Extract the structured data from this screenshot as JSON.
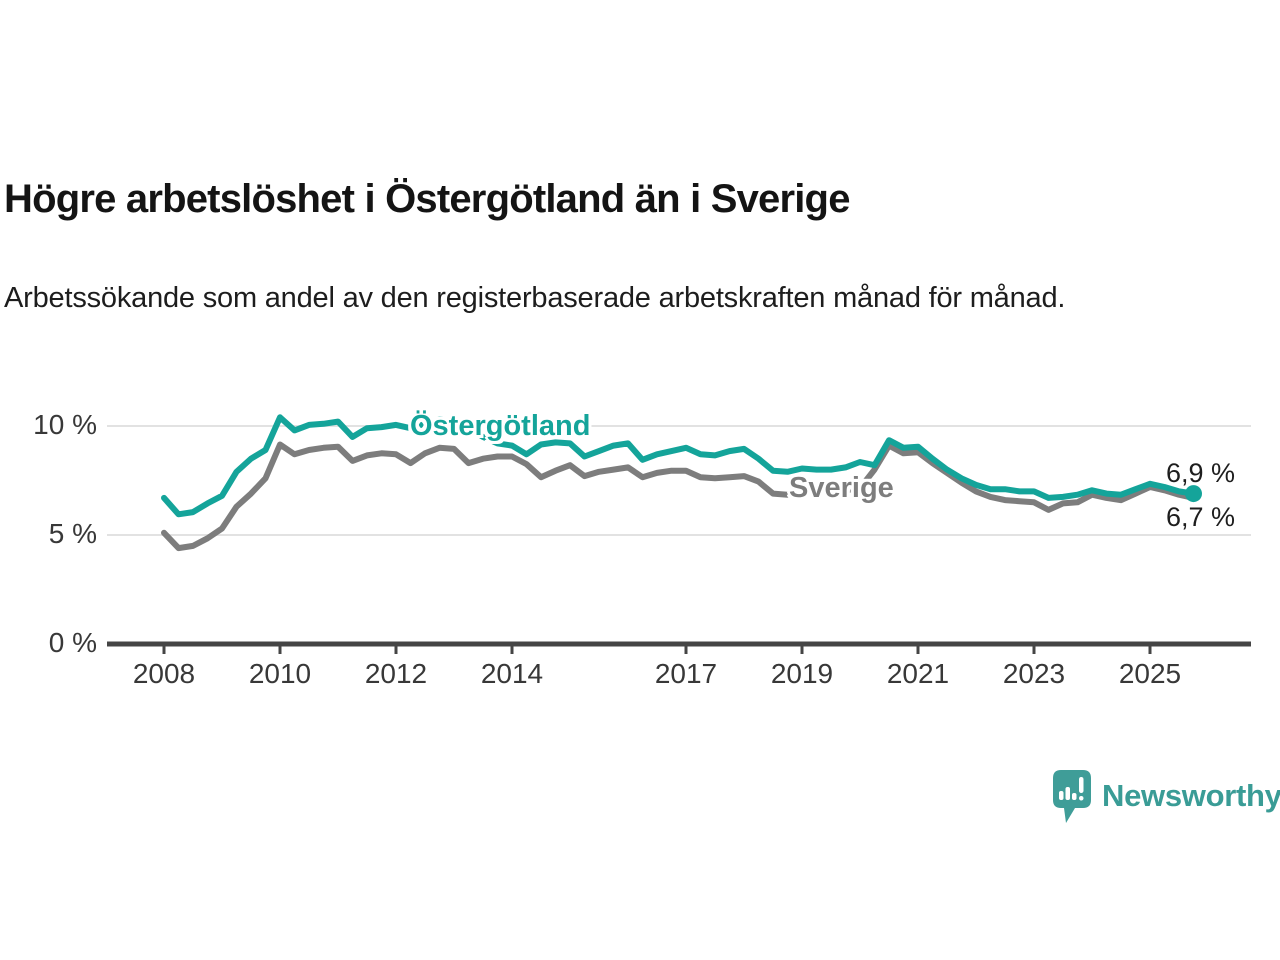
{
  "header": {
    "title": "Högre arbetslöshet i Östergötland än i Sverige",
    "subtitle": "Arbetssökande som andel av den registerbaserade arbetskraften månad för månad."
  },
  "chart_data": {
    "type": "line",
    "title": "Högre arbetslöshet i Östergötland än i Sverige",
    "xlabel": "",
    "ylabel": "",
    "unit": "%",
    "grid": "horizontal-only",
    "x_axis": {
      "start": 2008,
      "step": 0.25,
      "end": 2025.75,
      "ticks": [
        2008,
        2010,
        2012,
        2014,
        2017,
        2019,
        2021,
        2023,
        2025
      ]
    },
    "y_axis": {
      "min": 0,
      "max": 11.6,
      "ticks": [
        {
          "value": 10,
          "label": "10 %"
        },
        {
          "value": 5,
          "label": "5 %"
        },
        {
          "value": 0,
          "label": "0 %"
        }
      ]
    },
    "series": [
      {
        "name": "Sverige",
        "color": "#7d7d7d",
        "end_label": "6,7 %",
        "end_dot": false,
        "values": [
          5.1,
          4.4,
          4.5,
          4.85,
          5.3,
          6.3,
          6.9,
          7.6,
          9.15,
          8.7,
          8.9,
          9.0,
          9.05,
          8.4,
          8.65,
          8.75,
          8.7,
          8.3,
          8.75,
          9.0,
          8.95,
          8.3,
          8.5,
          8.6,
          8.6,
          8.25,
          7.65,
          7.95,
          8.2,
          7.7,
          7.9,
          8.0,
          8.1,
          7.65,
          7.85,
          7.95,
          7.95,
          7.65,
          7.6,
          7.65,
          7.7,
          7.45,
          6.9,
          6.85,
          6.9,
          6.95,
          7.0,
          7.05,
          7.15,
          8.0,
          9.1,
          8.75,
          8.8,
          8.3,
          7.85,
          7.4,
          7.0,
          6.75,
          6.6,
          6.55,
          6.5,
          6.15,
          6.45,
          6.5,
          6.85,
          6.7,
          6.6,
          6.9,
          7.2,
          7.05,
          6.85,
          6.7
        ]
      },
      {
        "name": "Östergötland",
        "color": "#14a49a",
        "end_label": "6,9 %",
        "end_dot": true,
        "values": [
          6.7,
          5.95,
          6.05,
          6.45,
          6.8,
          7.9,
          8.5,
          8.9,
          10.4,
          9.8,
          10.05,
          10.1,
          10.2,
          9.5,
          9.9,
          9.95,
          10.05,
          9.9,
          10.1,
          10.3,
          10.2,
          9.9,
          9.5,
          9.2,
          9.1,
          8.7,
          9.15,
          9.25,
          9.2,
          8.6,
          8.85,
          9.1,
          9.2,
          8.45,
          8.7,
          8.85,
          9.0,
          8.7,
          8.65,
          8.85,
          8.95,
          8.5,
          7.95,
          7.9,
          8.05,
          8.0,
          8.0,
          8.1,
          8.35,
          8.2,
          9.35,
          9.0,
          9.05,
          8.5,
          8.0,
          7.6,
          7.3,
          7.1,
          7.1,
          7.0,
          7.0,
          6.7,
          6.75,
          6.85,
          7.05,
          6.9,
          6.85,
          7.1,
          7.35,
          7.2,
          7.0,
          6.9
        ]
      }
    ]
  },
  "footer": {
    "brand": "Newsworthy",
    "logo_icon": "speech-bubble-bar-chart-exclamation-icon"
  },
  "colors": {
    "accent_teal": "#14a49a",
    "line_gray": "#7d7d7d",
    "logo_teal": "#3f9d98",
    "axis": "#454545",
    "grid": "#e2e2e2",
    "text": "#141414",
    "axis_text": "#383838"
  }
}
